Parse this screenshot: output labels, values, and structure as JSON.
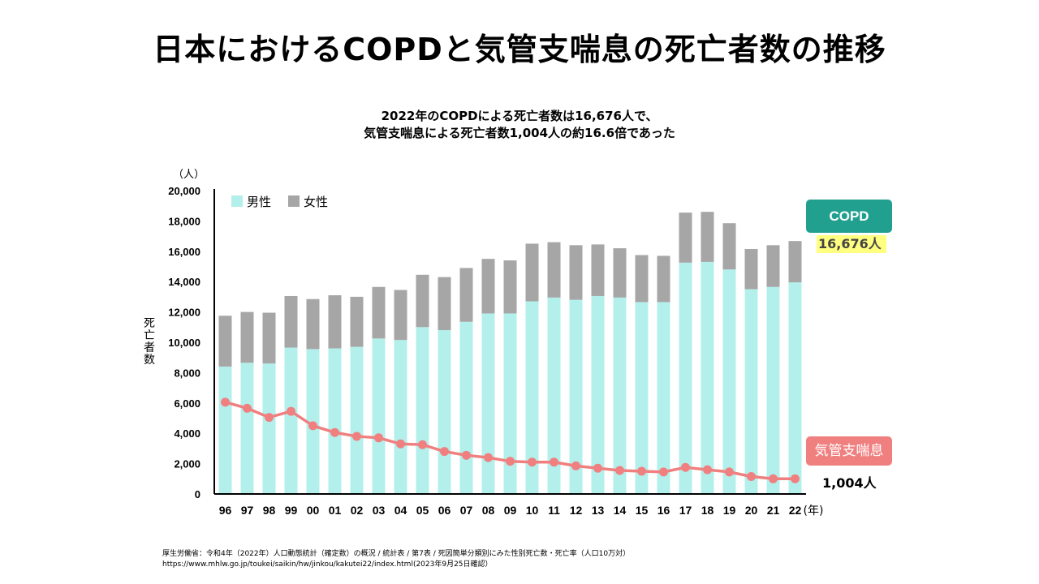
{
  "title": "日本におけるCOPDと気管支喘息の死亡者数の推移",
  "subtitle": {
    "line1": "2022年のCOPDによる死亡者数は16,676人で、",
    "line2": "気管支喘息による死亡者数1,004人の約16.6倍であった"
  },
  "chart_data": {
    "type": "bar",
    "stacked": true,
    "categories": [
      "96",
      "97",
      "98",
      "99",
      "00",
      "01",
      "02",
      "03",
      "04",
      "05",
      "06",
      "07",
      "08",
      "09",
      "10",
      "11",
      "12",
      "13",
      "14",
      "15",
      "16",
      "17",
      "18",
      "19",
      "20",
      "21",
      "22"
    ],
    "series": [
      {
        "name": "男性",
        "color": "#b3f0ec",
        "values": [
          8400,
          8650,
          8600,
          9650,
          9550,
          9600,
          9700,
          10250,
          10150,
          11000,
          10800,
          11350,
          11900,
          11900,
          12700,
          12950,
          12800,
          13050,
          12950,
          12650,
          12650,
          15250,
          15300,
          14800,
          13500,
          13650,
          13950
        ]
      },
      {
        "name": "女性",
        "color": "#a6a6a6",
        "values": [
          3350,
          3350,
          3350,
          3400,
          3300,
          3500,
          3300,
          3400,
          3300,
          3450,
          3500,
          3550,
          3600,
          3500,
          3800,
          3650,
          3600,
          3400,
          3250,
          3100,
          3050,
          3300,
          3300,
          3050,
          2650,
          2750,
          2726
        ]
      },
      {
        "name": "気管支喘息",
        "type": "line",
        "color": "#f08080",
        "values": [
          6050,
          5650,
          5050,
          5450,
          4500,
          4050,
          3800,
          3700,
          3300,
          3250,
          2800,
          2550,
          2400,
          2150,
          2100,
          2100,
          1850,
          1700,
          1550,
          1500,
          1450,
          1750,
          1600,
          1450,
          1150,
          1000,
          1004
        ]
      }
    ],
    "ylim": [
      0,
      20000
    ],
    "yticks": [
      "0",
      "2,000",
      "4,000",
      "6,000",
      "8,000",
      "10,000",
      "12,000",
      "14,000",
      "16,000",
      "18,000",
      "20,000"
    ],
    "ylabel": "死亡者数",
    "yunit": "（人）",
    "xunit": "(年)",
    "legend_position": "top-left"
  },
  "annotations": {
    "copd_label": "COPD",
    "copd_value": "16,676人",
    "asthma_label": "気管支喘息",
    "asthma_value": "1,004人"
  },
  "source": {
    "line1": "厚生労働省：令和4年（2022年）人口動態統計（確定数）の概況 / 統計表 / 第7表 / 死因簡単分類別にみた性別死亡数・死亡率（人口10万対）",
    "line2": "https://www.mhlw.go.jp/toukei/saikin/hw/jinkou/kakutei22/index.html(2023年9月25日確認）"
  }
}
